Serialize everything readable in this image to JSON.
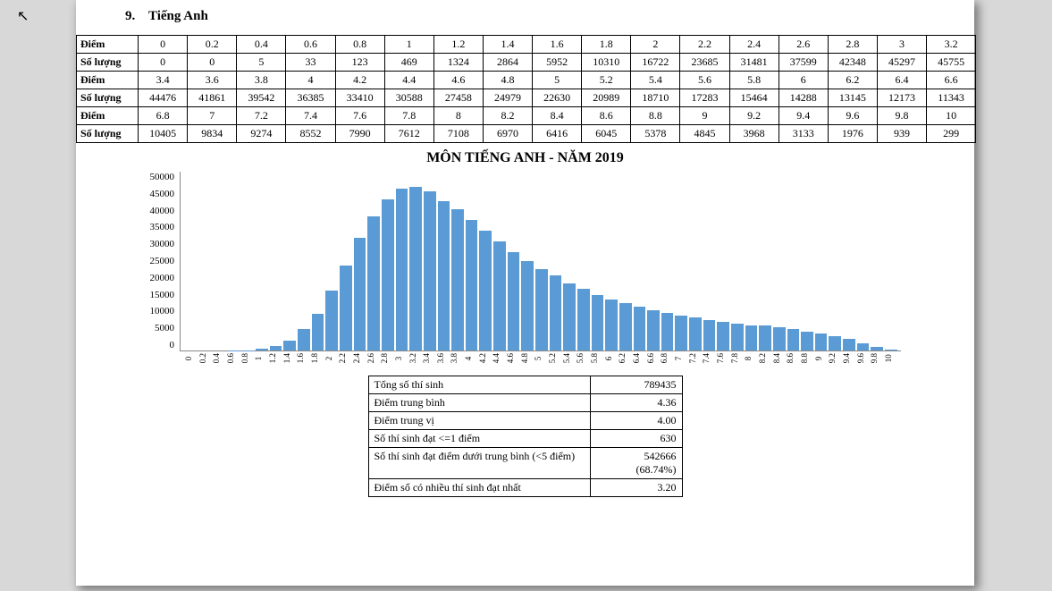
{
  "section_number": "9.",
  "section_name": "Tiếng Anh",
  "row_labels": {
    "score": "Điểm",
    "count": "Số lượng"
  },
  "scores": [
    0,
    0.2,
    0.4,
    0.6,
    0.8,
    1,
    1.2,
    1.4,
    1.6,
    1.8,
    2,
    2.2,
    2.4,
    2.6,
    2.8,
    3,
    3.2,
    3.4,
    3.6,
    3.8,
    4,
    4.2,
    4.4,
    4.6,
    4.8,
    5,
    5.2,
    5.4,
    5.6,
    5.8,
    6,
    6.2,
    6.4,
    6.6,
    6.8,
    7,
    7.2,
    7.4,
    7.6,
    7.8,
    8,
    8.2,
    8.4,
    8.6,
    8.8,
    9,
    9.2,
    9.4,
    9.6,
    9.8,
    10
  ],
  "counts": [
    0,
    0,
    5,
    33,
    123,
    469,
    1324,
    2864,
    5952,
    10310,
    16722,
    23685,
    31481,
    37599,
    42348,
    45297,
    45755,
    44476,
    41861,
    39542,
    36385,
    33410,
    30588,
    27458,
    24979,
    22630,
    20989,
    18710,
    17283,
    15464,
    14288,
    13145,
    12173,
    11343,
    10405,
    9834,
    9274,
    8552,
    7990,
    7612,
    7108,
    6970,
    6416,
    6045,
    5378,
    4845,
    3968,
    3133,
    1976,
    939,
    299
  ],
  "table_cols_per_block": 17,
  "chart": {
    "title": "MÔN TIẾNG ANH - NĂM 2019",
    "y_max": 50000,
    "y_ticks": [
      50000,
      45000,
      40000,
      35000,
      30000,
      25000,
      20000,
      15000,
      10000,
      5000,
      0
    ],
    "bar_color": "#5b9bd5",
    "background": "#ffffff",
    "axis_color": "#888888",
    "title_fontsize": 16,
    "tick_fontsize": 11,
    "xlabel_fontsize": 9
  },
  "stats": [
    {
      "label": "Tổng số thí sinh",
      "value": "789435"
    },
    {
      "label": "Điểm trung bình",
      "value": "4.36"
    },
    {
      "label": "Điểm trung vị",
      "value": "4.00"
    },
    {
      "label": "Số thí sinh đạt <=1 điểm",
      "value": "630"
    },
    {
      "label": "Số thí sinh đạt điểm dưới trung bình (<5 điểm)",
      "value": "542666\n(68.74%)"
    },
    {
      "label": "Điểm số có nhiều thí sinh đạt nhất",
      "value": "3.20"
    }
  ]
}
